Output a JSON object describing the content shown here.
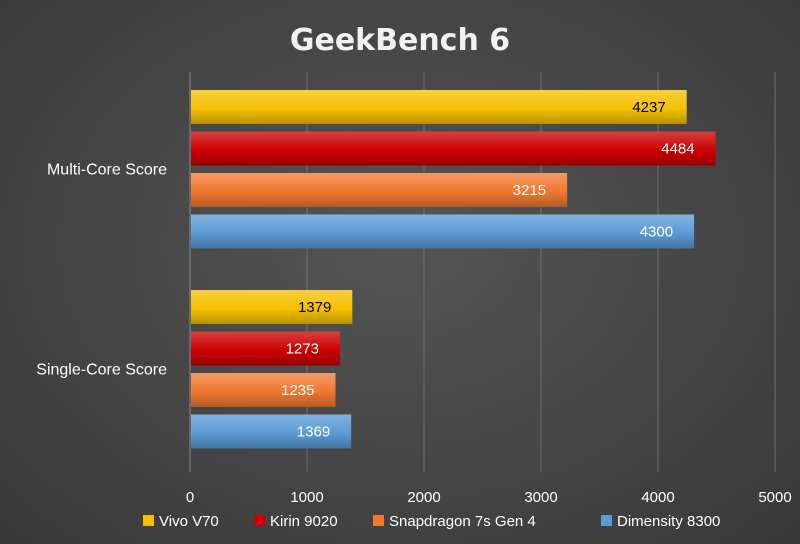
{
  "chart_data": {
    "type": "bar",
    "orientation": "horizontal",
    "title": "GeekBench 6",
    "categories": [
      "Multi-Core Score",
      "Single-Core Score"
    ],
    "series": [
      {
        "name": "Vivo V70",
        "color": "#f5c000",
        "label_color": "#000000",
        "values": [
          4237,
          1379
        ]
      },
      {
        "name": "Kirin 9020",
        "color": "#cc0000",
        "label_color": "#ffffff",
        "values": [
          4484,
          1273
        ]
      },
      {
        "name": "Snapdragon 7s Gen 4",
        "color": "#f07830",
        "label_color": "#ffffff",
        "values": [
          3215,
          1235
        ]
      },
      {
        "name": "Dimensity 8300",
        "color": "#5b9bd5",
        "label_color": "#ffffff",
        "values": [
          4300,
          1369
        ]
      }
    ],
    "xlim": [
      0,
      5000
    ],
    "xticks": [
      0,
      1000,
      2000,
      3000,
      4000,
      5000
    ],
    "grid": true,
    "legend_position": "bottom"
  }
}
